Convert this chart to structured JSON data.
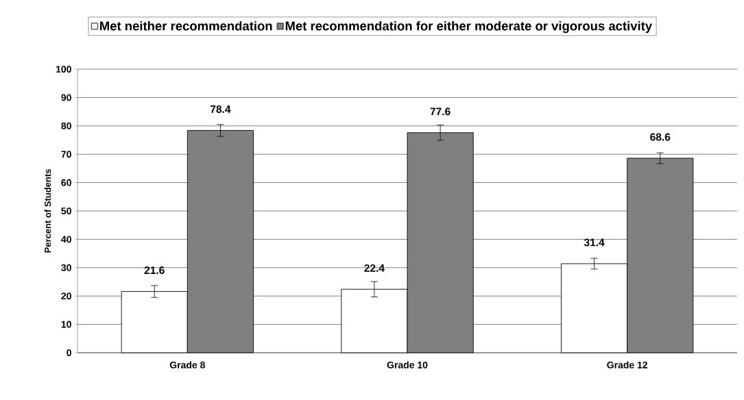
{
  "chart_data": {
    "type": "bar",
    "categories": [
      "Grade 8",
      "Grade 10",
      "Grade 12"
    ],
    "ylabel": "Percent of Students",
    "series": [
      {
        "name": "Met neither recommendation",
        "color": "#ffffff",
        "values": [
          21.6,
          22.4,
          31.4
        ],
        "errors": [
          2.1,
          2.7,
          1.9
        ]
      },
      {
        "name": "Met recommendation for either moderate or vigorous activity",
        "color": "#808080",
        "values": [
          78.4,
          77.6,
          68.6
        ],
        "errors": [
          2.1,
          2.7,
          1.9
        ]
      }
    ],
    "ylim": [
      0,
      100
    ],
    "yticks": [
      0,
      10,
      20,
      30,
      40,
      50,
      60,
      70,
      80,
      90,
      100
    ],
    "grid": "y",
    "legend": "top",
    "data_labels": true
  }
}
